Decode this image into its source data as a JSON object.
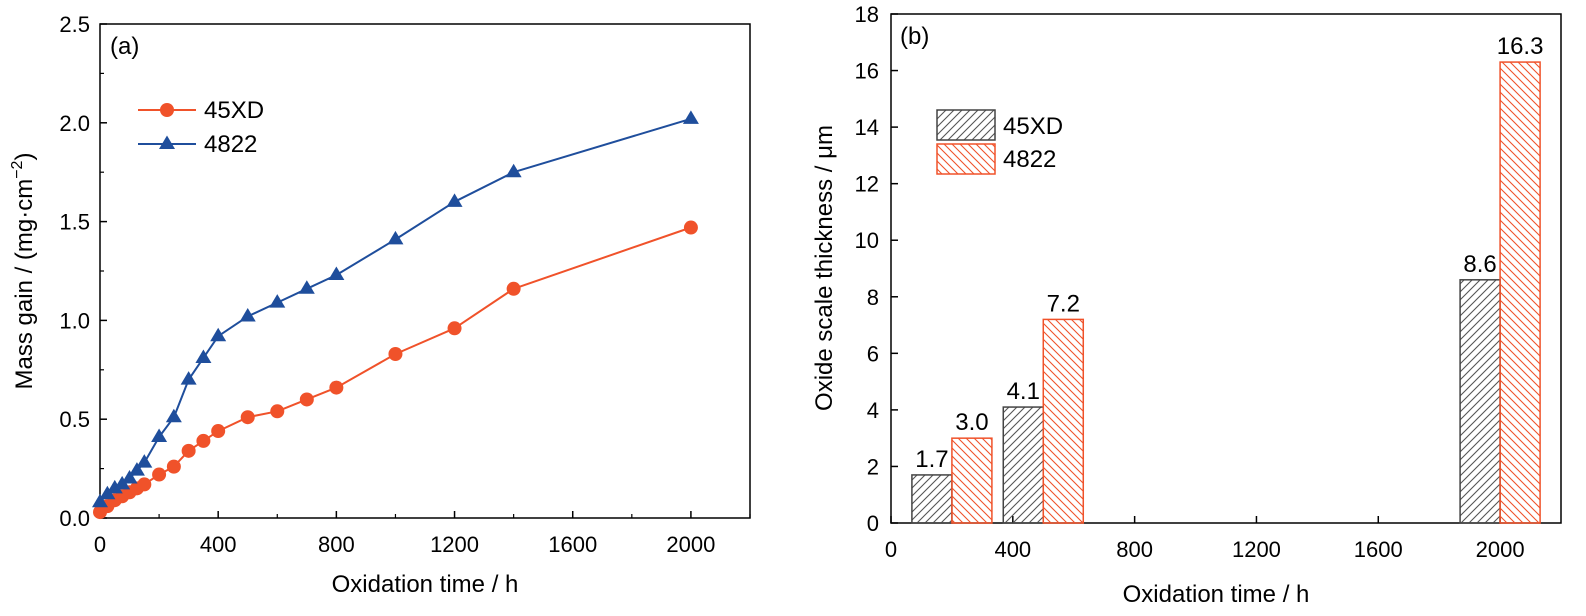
{
  "chart_data": [
    {
      "type": "line",
      "panel_label": "(a)",
      "xlabel": "Oxidation time / h",
      "ylabel": "Mass gain / (mg·cm",
      "ylabel_sup": "−2",
      "ylabel_close": ")",
      "xlim": [
        0,
        2200
      ],
      "ylim": [
        0,
        2.5
      ],
      "xticks": [
        "0",
        "400",
        "800",
        "1200",
        "1600",
        "2000"
      ],
      "xtick_values": [
        0,
        400,
        800,
        1200,
        1600,
        2000
      ],
      "yticks": [
        "0.0",
        "0.5",
        "1.0",
        "1.5",
        "2.0",
        "2.5"
      ],
      "ytick_values": [
        0,
        0.5,
        1.0,
        1.5,
        2.0,
        2.5
      ],
      "legend_position": "upper-left",
      "series": [
        {
          "name": "45XD",
          "color": "#f0522a",
          "marker": "circle",
          "x": [
            0,
            25,
            50,
            75,
            100,
            125,
            150,
            200,
            250,
            300,
            350,
            400,
            500,
            600,
            700,
            800,
            1000,
            1200,
            1400,
            2000
          ],
          "y": [
            0.03,
            0.06,
            0.09,
            0.11,
            0.13,
            0.15,
            0.17,
            0.22,
            0.26,
            0.34,
            0.39,
            0.44,
            0.51,
            0.54,
            0.6,
            0.66,
            0.83,
            0.96,
            1.16,
            1.47
          ]
        },
        {
          "name": "4822",
          "color": "#1f4e9c",
          "marker": "triangle",
          "x": [
            0,
            25,
            50,
            75,
            100,
            125,
            150,
            200,
            250,
            300,
            350,
            400,
            500,
            600,
            700,
            800,
            1000,
            1200,
            1400,
            2000
          ],
          "y": [
            0.08,
            0.12,
            0.15,
            0.17,
            0.2,
            0.24,
            0.28,
            0.41,
            0.51,
            0.7,
            0.81,
            0.92,
            1.02,
            1.09,
            1.16,
            1.23,
            1.41,
            1.6,
            1.75,
            2.02
          ]
        }
      ]
    },
    {
      "type": "bar",
      "panel_label": "(b)",
      "xlabel": "Oxidation time / h",
      "ylabel": "Oxide scale thickness / μm",
      "xlim": [
        0,
        2200
      ],
      "ylim": [
        0,
        18
      ],
      "xticks": [
        "0",
        "400",
        "800",
        "1200",
        "1600",
        "2000"
      ],
      "xtick_values": [
        0,
        400,
        800,
        1200,
        1600,
        2000
      ],
      "yticks": [
        "0",
        "2",
        "4",
        "6",
        "8",
        "10",
        "12",
        "14",
        "16",
        "18"
      ],
      "ytick_values": [
        0,
        2,
        4,
        6,
        8,
        10,
        12,
        14,
        16,
        18
      ],
      "legend_position": "upper-left",
      "categories": [
        200,
        500,
        2000
      ],
      "series": [
        {
          "name": "45XD",
          "color": "#444444",
          "hatch": "forward",
          "values": [
            1.7,
            4.1,
            8.6
          ],
          "labels": [
            "1.7",
            "4.1",
            "8.6"
          ]
        },
        {
          "name": "4822",
          "color": "#f0522a",
          "hatch": "backward",
          "values": [
            3.0,
            7.2,
            16.3
          ],
          "labels": [
            "3.0",
            "7.2",
            "16.3"
          ]
        }
      ]
    }
  ]
}
